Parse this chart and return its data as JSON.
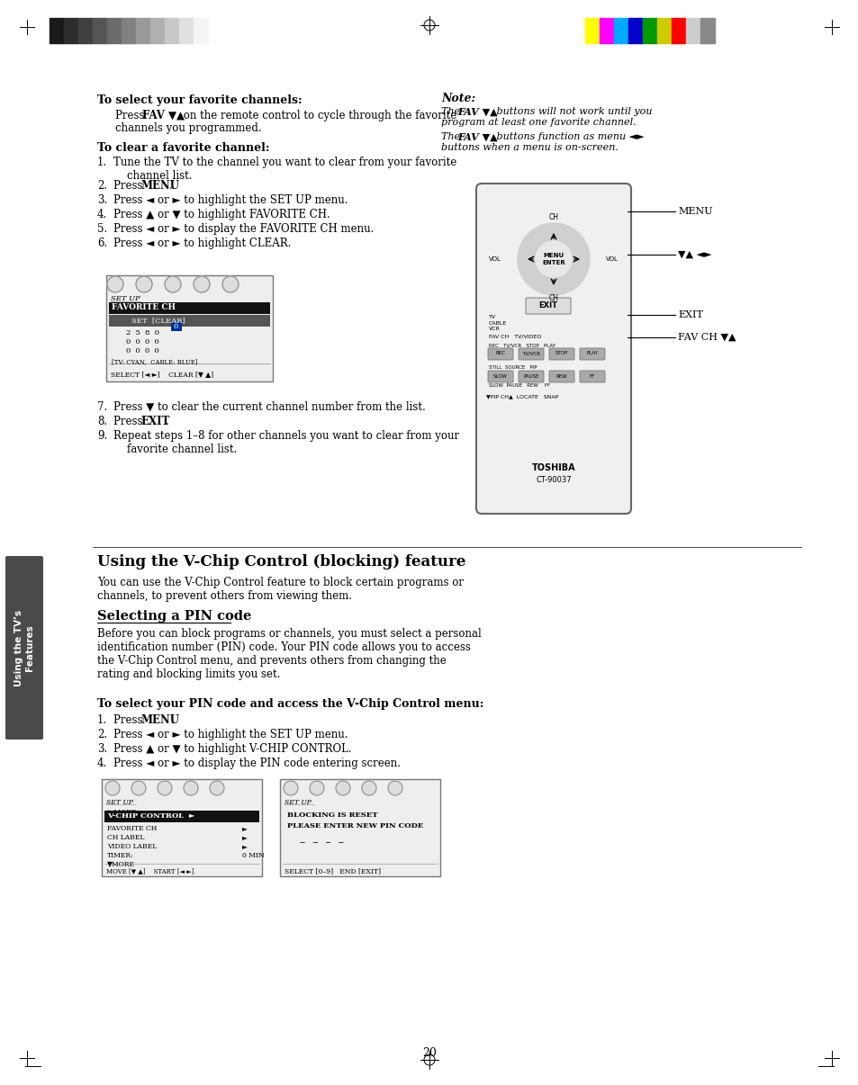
{
  "page_bg": "#ffffff",
  "page_num": "20",
  "sidebar_bg": "#4a4a4a",
  "sidebar_text": "Using the TV’s\nFeatures",
  "sidebar_text_color": "#ffffff",
  "title_section1": "To select your favorite channels:",
  "title_section2": "To clear a favorite channel:",
  "note_title": "Note:",
  "note_line1": "The FAV ▼▲ buttons will not work until you\nprogram at least one favorite channel.",
  "note_line2": "The FAV ▼▲ buttons function as menu ◄►\nbuttons when a menu is on-screen.",
  "section3_title": "Using the V-Chip Control (blocking) feature",
  "section3_body": "You can use the V-Chip Control feature to block certain programs or\nchannels, to prevent others from viewing them.",
  "section4_title": "Selecting a PIN code",
  "section4_body": "Before you can block programs or channels, you must select a personal\nidentification number (PIN) code. Your PIN code allows you to access\nthe V-Chip Control menu, and prevents others from changing the\nrating and blocking limits you set.",
  "section4_sub_title": "To select your PIN code and access the V-Chip Control menu:",
  "section4_steps": [
    "Press MENU.",
    "Press ◄ or ► to highlight the SET UP menu.",
    "Press ▲ or ▼ to highlight V-CHIP CONTROL.",
    "Press ◄ or ► to display the PIN code entering screen."
  ],
  "gray_colors": [
    "#1a1a1a",
    "#2d2d2d",
    "#404040",
    "#555555",
    "#6a6a6a",
    "#808080",
    "#999999",
    "#b0b0b0",
    "#c8c8c8",
    "#e0e0e0",
    "#f5f5f5"
  ],
  "color_bars": [
    "#ffff00",
    "#ff00ff",
    "#00aaff",
    "#0000cc",
    "#009900",
    "#cccc00",
    "#ff0000",
    "#cccccc",
    "#888888"
  ]
}
